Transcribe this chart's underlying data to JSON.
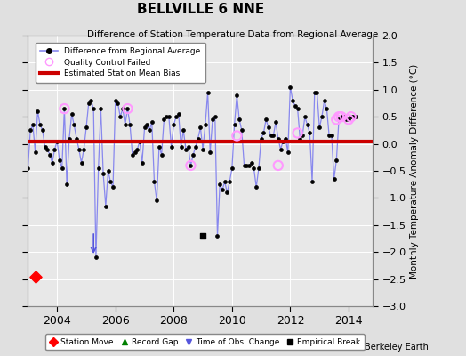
{
  "title": "BELLVILLE 6 NNE",
  "subtitle": "Difference of Station Temperature Data from Regional Average",
  "ylabel": "Monthly Temperature Anomaly Difference (°C)",
  "credit": "Berkeley Earth",
  "xlim": [
    2003.0,
    2014.83
  ],
  "ylim": [
    -3.0,
    2.0
  ],
  "yticks": [
    -3,
    -2.5,
    -2,
    -1.5,
    -1,
    -0.5,
    0,
    0.5,
    1,
    1.5,
    2
  ],
  "xticks": [
    2004,
    2006,
    2008,
    2010,
    2012,
    2014
  ],
  "bias_value": 0.05,
  "station_move_x": 2003.25,
  "station_move_y": -2.45,
  "time_of_obs_change_x": 2005.25,
  "time_of_obs_change_y_top": -1.62,
  "time_of_obs_change_y_bot": -2.08,
  "empirical_break_x": 2009.0,
  "empirical_break_y": -1.7,
  "bg_color": "#e0e0e0",
  "plot_bg_color": "#e8e8e8",
  "line_color": "#5555dd",
  "line_color_light": "#8888ee",
  "bias_color": "#cc0000",
  "qc_color": "#ff99ff",
  "ts_x": [
    2003.0,
    2003.083,
    2003.167,
    2003.25,
    2003.333,
    2003.417,
    2003.5,
    2003.583,
    2003.667,
    2003.75,
    2003.833,
    2003.917,
    2004.0,
    2004.083,
    2004.167,
    2004.25,
    2004.333,
    2004.417,
    2004.5,
    2004.583,
    2004.667,
    2004.75,
    2004.833,
    2004.917,
    2005.0,
    2005.083,
    2005.167,
    2005.25,
    2005.333,
    2005.417,
    2005.5,
    2005.583,
    2005.667,
    2005.75,
    2005.833,
    2005.917,
    2006.0,
    2006.083,
    2006.167,
    2006.25,
    2006.333,
    2006.417,
    2006.5,
    2006.583,
    2006.667,
    2006.75,
    2006.833,
    2006.917,
    2007.0,
    2007.083,
    2007.167,
    2007.25,
    2007.333,
    2007.417,
    2007.5,
    2007.583,
    2007.667,
    2007.75,
    2007.833,
    2007.917,
    2008.0,
    2008.083,
    2008.167,
    2008.25,
    2008.333,
    2008.417,
    2008.5,
    2008.583,
    2008.667,
    2008.75,
    2008.833,
    2008.917,
    2009.0,
    2009.083,
    2009.167,
    2009.25,
    2009.333,
    2009.417,
    2009.5,
    2009.583,
    2009.667,
    2009.75,
    2009.833,
    2009.917,
    2010.0,
    2010.083,
    2010.167,
    2010.25,
    2010.333,
    2010.417,
    2010.5,
    2010.583,
    2010.667,
    2010.75,
    2010.833,
    2010.917,
    2011.0,
    2011.083,
    2011.167,
    2011.25,
    2011.333,
    2011.417,
    2011.5,
    2011.583,
    2011.667,
    2011.75,
    2011.833,
    2011.917,
    2012.0,
    2012.083,
    2012.167,
    2012.25,
    2012.333,
    2012.417,
    2012.5,
    2012.583,
    2012.667,
    2012.75,
    2012.833,
    2012.917,
    2013.0,
    2013.083,
    2013.167,
    2013.25,
    2013.333,
    2013.417,
    2013.5,
    2013.583,
    2013.667,
    2013.75,
    2013.833,
    2013.917,
    2014.0,
    2014.083,
    2014.167,
    2014.25
  ],
  "ts_y": [
    -0.45,
    0.25,
    0.35,
    -0.15,
    0.6,
    0.35,
    0.25,
    -0.05,
    -0.1,
    -0.2,
    -0.35,
    -0.1,
    0.05,
    -0.3,
    -0.45,
    0.65,
    -0.75,
    0.1,
    0.55,
    0.35,
    0.1,
    -0.1,
    -0.35,
    -0.1,
    0.3,
    0.75,
    0.8,
    0.65,
    -2.1,
    -0.45,
    0.65,
    -0.55,
    -1.15,
    -0.5,
    -0.7,
    -0.8,
    0.8,
    0.75,
    0.5,
    0.65,
    0.35,
    0.65,
    0.35,
    -0.2,
    -0.15,
    -0.1,
    0.05,
    -0.35,
    0.3,
    0.35,
    0.25,
    0.4,
    -0.7,
    -1.05,
    -0.05,
    -0.2,
    0.45,
    0.5,
    0.5,
    -0.05,
    0.35,
    0.5,
    0.55,
    -0.05,
    0.25,
    -0.1,
    -0.05,
    -0.4,
    -0.2,
    -0.05,
    0.1,
    0.3,
    -0.1,
    0.35,
    0.95,
    -0.15,
    0.45,
    0.5,
    -1.7,
    -0.75,
    -0.85,
    -0.7,
    -0.9,
    -0.7,
    -0.45,
    0.35,
    0.9,
    0.45,
    0.25,
    -0.4,
    -0.4,
    -0.4,
    -0.35,
    -0.45,
    -0.8,
    -0.45,
    0.1,
    0.2,
    0.45,
    0.3,
    0.15,
    0.15,
    0.4,
    0.1,
    -0.1,
    0.05,
    0.1,
    -0.15,
    1.05,
    0.8,
    0.7,
    0.65,
    0.1,
    0.15,
    0.5,
    0.35,
    0.2,
    -0.7,
    0.95,
    0.95,
    0.3,
    0.5,
    0.8,
    0.65,
    0.15,
    0.15,
    -0.65,
    -0.3,
    0.45,
    0.5,
    0.5,
    0.45,
    0.45,
    0.5,
    0.5,
    0.5
  ],
  "qc_failed_x": [
    2004.25,
    2006.417,
    2008.583,
    2010.167,
    2011.583,
    2012.25,
    2013.583,
    2013.667,
    2013.75,
    2014.0,
    2014.083
  ],
  "qc_failed_y": [
    0.65,
    0.65,
    -0.4,
    0.15,
    -0.4,
    0.2,
    0.45,
    0.5,
    0.5,
    0.45,
    0.5
  ]
}
